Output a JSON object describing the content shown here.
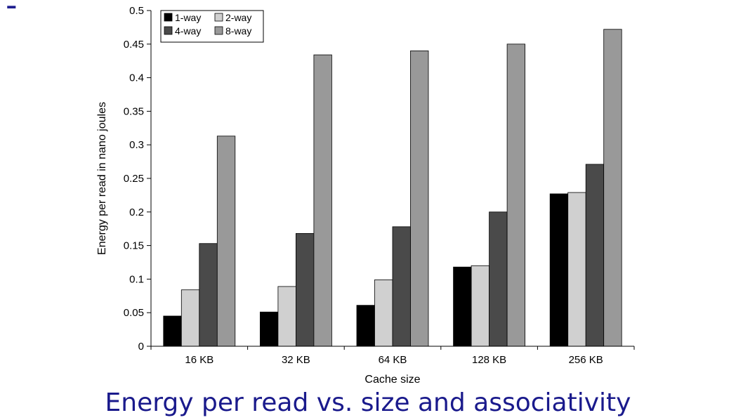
{
  "slide": {
    "bullet": "-",
    "caption": "Energy per read vs. size and associativity"
  },
  "chart_data": {
    "type": "bar",
    "categories": [
      "16 KB",
      "32 KB",
      "64 KB",
      "128 KB",
      "256 KB"
    ],
    "series": [
      {
        "name": "1-way",
        "color": "#000000",
        "values": [
          0.045,
          0.051,
          0.061,
          0.118,
          0.227
        ]
      },
      {
        "name": "2-way",
        "color": "#d0d0d0",
        "values": [
          0.084,
          0.089,
          0.099,
          0.12,
          0.229
        ]
      },
      {
        "name": "4-way",
        "color": "#4a4a4a",
        "values": [
          0.153,
          0.168,
          0.178,
          0.2,
          0.271
        ]
      },
      {
        "name": "8-way",
        "color": "#999999",
        "values": [
          0.313,
          0.434,
          0.44,
          0.45,
          0.472
        ]
      }
    ],
    "xlabel": "Cache size",
    "ylabel": "Energy per read in nano joules",
    "ylim": [
      0,
      0.5
    ],
    "yticks": [
      "0",
      "0.05",
      "0.1",
      "0.15",
      "0.2",
      "0.25",
      "0.3",
      "0.35",
      "0.4",
      "0.45",
      "0.5"
    ],
    "grid": false,
    "legend_position": "top-left"
  }
}
